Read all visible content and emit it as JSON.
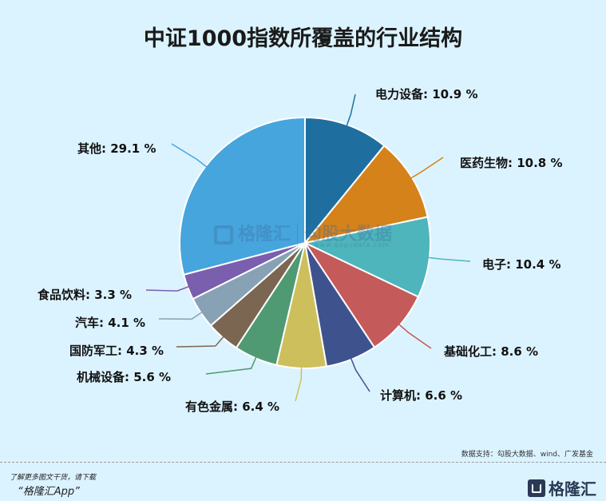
{
  "title": "中证1000指数所覆盖的行业结构",
  "chart_data": {
    "type": "pie",
    "title": "中证1000指数所覆盖的行业结构",
    "unit": "%",
    "start_angle_deg": 0,
    "direction": "clockwise",
    "slices": [
      {
        "label": "电力设备",
        "value": 10.9,
        "color": "#1E6F9F",
        "text": "电力设备: 10.9 %"
      },
      {
        "label": "医药生物",
        "value": 10.8,
        "color": "#D5821A",
        "text": "医药生物: 10.8 %"
      },
      {
        "label": "电子",
        "value": 10.4,
        "color": "#4DB5BB",
        "text": "电子: 10.4 %"
      },
      {
        "label": "基础化工",
        "value": 8.6,
        "color": "#C45A5A",
        "text": "基础化工: 8.6 %"
      },
      {
        "label": "计算机",
        "value": 6.6,
        "color": "#3E538E",
        "text": "计算机: 6.6 %"
      },
      {
        "label": "有色金属",
        "value": 6.4,
        "color": "#CDBF5B",
        "text": "有色金属: 6.4 %"
      },
      {
        "label": "机械设备",
        "value": 5.6,
        "color": "#4F9A72",
        "text": "机械设备: 5.6 %"
      },
      {
        "label": "国防军工",
        "value": 4.3,
        "color": "#7A6651",
        "text": "国防军工: 4.3 %"
      },
      {
        "label": "汽车",
        "value": 4.1,
        "color": "#87A2B4",
        "text": "汽车: 4.1 %"
      },
      {
        "label": "食品饮料",
        "value": 3.3,
        "color": "#7A5FAE",
        "text": "食品饮料: 3.3 %"
      },
      {
        "label": "其他",
        "value": 29.1,
        "color": "#46A5DC",
        "text": "其他: 29.1 %"
      }
    ]
  },
  "watermark": {
    "brand": "格隆汇",
    "partner": "勾股大数据",
    "partner_url": "www.gogudata.com"
  },
  "footer": {
    "source": "数据支持：勾股大数据、wind、广发基金",
    "promo_line1": "了解更多图文干货，请下载",
    "promo_line2": "“格隆汇App”",
    "brand": "格隆汇"
  }
}
